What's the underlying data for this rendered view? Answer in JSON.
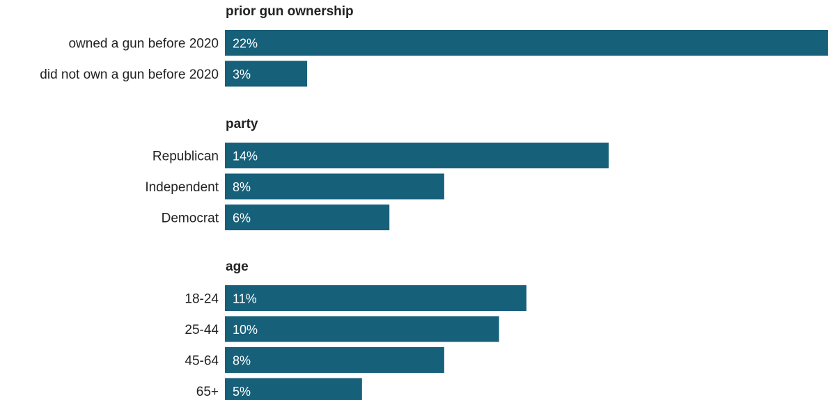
{
  "chart_data": {
    "type": "bar",
    "orientation": "horizontal",
    "bar_color": "#17607a",
    "value_suffix": "%",
    "groups": [
      {
        "title": "prior gun ownership",
        "categories": [
          "owned a gun before 2020",
          "did not own a gun before 2020"
        ],
        "values": [
          22,
          3
        ],
        "labels": [
          "22%",
          "3%"
        ]
      },
      {
        "title": "party",
        "categories": [
          "Republican",
          "Independent",
          "Democrat"
        ],
        "values": [
          14,
          8,
          6
        ],
        "labels": [
          "14%",
          "8%",
          "6%"
        ]
      },
      {
        "title": "age",
        "categories": [
          "18-24",
          "25-44",
          "45-64",
          "65+"
        ],
        "values": [
          11,
          10,
          8,
          5
        ],
        "labels": [
          "11%",
          "10%",
          "8%",
          "5%"
        ]
      }
    ]
  }
}
